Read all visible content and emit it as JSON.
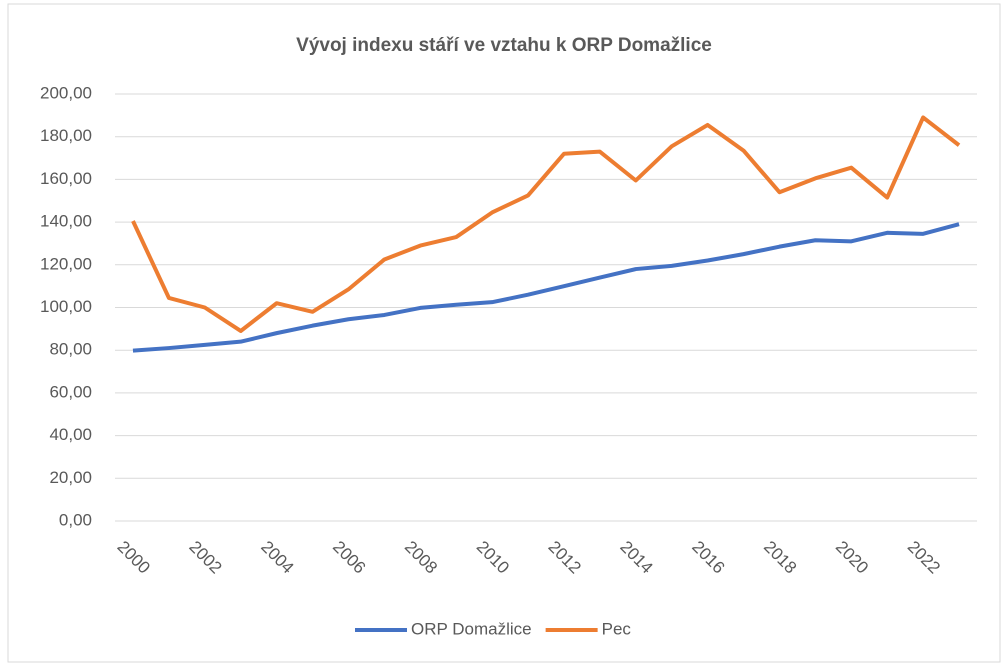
{
  "chart_data": {
    "type": "line",
    "title": "Vývoj indexu stáří ve vztahu k ORP Domažlice",
    "categories": [
      "2000",
      null,
      "2002",
      null,
      "2004",
      null,
      "2006",
      null,
      "2008",
      null,
      "2010",
      null,
      "2012",
      null,
      "2014",
      null,
      "2016",
      null,
      "2018",
      null,
      "2020",
      null,
      "2022",
      null
    ],
    "series": [
      {
        "name": "ORP Domažlice",
        "color": "#4472c4",
        "values": [
          79.8,
          81,
          82.5,
          84,
          88,
          91.5,
          94.5,
          96.5,
          99.8,
          101.3,
          102.5,
          106,
          110,
          114,
          118,
          119.5,
          122,
          125,
          128.5,
          131.5,
          131,
          135,
          134.5,
          139
        ]
      },
      {
        "name": "Pec",
        "color": "#ed7d31",
        "values": [
          140.5,
          104.5,
          100,
          89,
          102,
          98,
          108.5,
          122.5,
          129,
          133,
          144.5,
          152.5,
          172,
          173,
          159.5,
          175.5,
          185.5,
          173.5,
          154,
          160.5,
          165.5,
          151.5,
          189,
          176
        ]
      }
    ],
    "ylim": [
      0,
      200
    ],
    "yticks": [
      {
        "value": 0,
        "label": "0,00"
      },
      {
        "value": 20,
        "label": "20,00"
      },
      {
        "value": 40,
        "label": "40,00"
      },
      {
        "value": 60,
        "label": "60,00"
      },
      {
        "value": 80,
        "label": "80,00"
      },
      {
        "value": 100,
        "label": "100,00"
      },
      {
        "value": 120,
        "label": "120,00"
      },
      {
        "value": 140,
        "label": "140,00"
      },
      {
        "value": 160,
        "label": "160,00"
      },
      {
        "value": 180,
        "label": "180,00"
      },
      {
        "value": 200,
        "label": "200,00"
      }
    ],
    "grid": true,
    "legend": "bottom"
  }
}
